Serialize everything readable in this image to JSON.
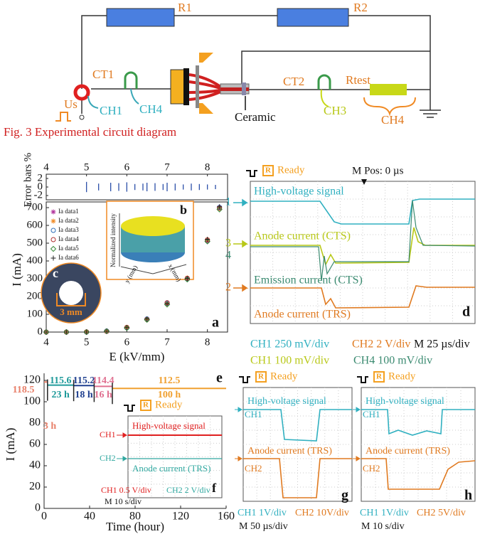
{
  "circuit": {
    "r1": "R1",
    "r2": "R2",
    "ct1": "CT1",
    "ct2": "CT2",
    "us": "Us",
    "ch1": "CH1",
    "ch4_left": "CH4",
    "ceramic": "Ceramic",
    "rtest": "Rtest",
    "ch3": "CH3",
    "ch4_right": "CH4"
  },
  "caption": "Fig. 3 Experimental circuit diagram",
  "chart_data": [
    {
      "type": "scatter",
      "panel_label": "a",
      "xlabel": "E (kV/mm)",
      "ylabel": "I (mA)",
      "xlim": [
        4,
        8.5
      ],
      "ylim": [
        0,
        700
      ],
      "xticks": [
        4,
        5,
        6,
        7,
        8
      ],
      "yticks": [
        0,
        100,
        200,
        300,
        400,
        500,
        600,
        700
      ],
      "x": [
        4,
        4.5,
        5,
        5.5,
        6,
        6.5,
        7,
        7.5,
        8,
        8.3
      ],
      "series": [
        {
          "name": "Ia data1",
          "color": "#b0309a",
          "marker": "star",
          "values": [
            0,
            0,
            0,
            4,
            25,
            72,
            160,
            300,
            515,
            700
          ]
        },
        {
          "name": "Ia data2",
          "color": "#f08a24",
          "marker": "star",
          "values": [
            0,
            0,
            1,
            5,
            27,
            70,
            158,
            305,
            520,
            695
          ]
        },
        {
          "name": "Ia data3",
          "color": "#2f6fb8",
          "marker": "circle",
          "values": [
            0,
            0,
            0,
            6,
            24,
            74,
            162,
            298,
            512,
            702
          ]
        },
        {
          "name": "Ia data4",
          "color": "#b03030",
          "marker": "circle",
          "values": [
            0,
            0,
            1,
            4,
            26,
            71,
            165,
            302,
            518,
            698
          ]
        },
        {
          "name": "Ia data5",
          "color": "#3a8a3a",
          "marker": "diamond",
          "values": [
            0,
            0,
            0,
            5,
            23,
            69,
            155,
            296,
            510,
            690
          ]
        },
        {
          "name": "Ia data6",
          "color": "#222222",
          "marker": "plus",
          "values": [
            0,
            0,
            0,
            5,
            25,
            73,
            161,
            301,
            522,
            705
          ]
        }
      ],
      "error_bars": {
        "ylabel": "Error bars %",
        "ylim": [
          -3,
          3
        ],
        "yticks": [
          2,
          0,
          -2
        ],
        "xticks": [
          4,
          5,
          6,
          7,
          8
        ],
        "color": "#2b4fa8",
        "x": [
          5.0,
          5.3,
          5.6,
          5.8,
          6.0,
          6.2,
          6.4,
          6.5,
          6.7,
          6.9,
          7.0,
          7.2,
          7.4,
          7.6,
          7.8,
          8.0,
          8.2
        ],
        "values": [
          0,
          0,
          0,
          0,
          0,
          0,
          0,
          0,
          0,
          0,
          0,
          0,
          0,
          0,
          0,
          0,
          0
        ],
        "errors": [
          1.2,
          0.8,
          1.0,
          0.9,
          1.1,
          0.7,
          0.8,
          1.0,
          0.9,
          0.7,
          1.0,
          0.8,
          0.6,
          0.8,
          0.7,
          0.6,
          0.5
        ]
      },
      "inset_b": {
        "label": "b",
        "z_label": "Normalized intensity",
        "x_label": "x (mm)",
        "y_label": "y (mm)"
      },
      "inset_c": {
        "label": "c",
        "scale": "3 mm"
      }
    },
    {
      "type": "line",
      "panel_label": "e",
      "xlabel": "Time (hour)",
      "ylabel": "I (mA)",
      "xlim": [
        0,
        160
      ],
      "ylim": [
        0,
        120
      ],
      "xticks": [
        0,
        40,
        80,
        120,
        160
      ],
      "yticks": [
        0,
        20,
        40,
        60,
        80,
        100,
        120
      ],
      "segments": [
        {
          "x": [
            0,
            3
          ],
          "values": [
            118.5,
            118.5
          ],
          "color": "#e8806a",
          "duration": "3 h"
        },
        {
          "x": [
            3,
            26
          ],
          "values": [
            115.6,
            115.6
          ],
          "color": "#1f9a9a",
          "duration": "23 h"
        },
        {
          "x": [
            26,
            44
          ],
          "values": [
            115.2,
            115.2
          ],
          "color": "#1f3f8f",
          "duration": "18 h"
        },
        {
          "x": [
            44,
            60
          ],
          "values": [
            114.4,
            114.4
          ],
          "color": "#e07090",
          "duration": "16 h"
        },
        {
          "x": [
            60,
            160
          ],
          "values": [
            112.5,
            112.5
          ],
          "color": "#f0a030",
          "duration": "100 h"
        }
      ]
    }
  ],
  "panel_d": {
    "label": "d",
    "icon": "R",
    "status": "Ready",
    "position": "M Pos: 0 µs",
    "channels": [
      "1",
      "3",
      "4",
      "2"
    ],
    "traces": [
      "High-voltage signal",
      "Anode current (CTS)",
      "Emission current (CTS)",
      "Anode current (TRS)"
    ],
    "scales": [
      "CH1 250 mV/div",
      "CH2 2 V/div",
      "M 25 µs/div",
      "CH1 100 mV/div",
      "CH4 100 mV/div"
    ]
  },
  "panel_f": {
    "label": "f",
    "icon": "R",
    "status": "Ready",
    "channels": [
      "CH1",
      "CH2"
    ],
    "traces": [
      "High-voltage signal",
      "Anode current (TRS)"
    ],
    "scales": [
      "CH1 0.5 V/div",
      "CH2 2 V/div",
      "M 10 s/div"
    ]
  },
  "panel_g": {
    "label": "g",
    "icon": "R",
    "status": "Ready",
    "channels": [
      "CH1",
      "CH2"
    ],
    "traces": [
      "High-voltage signal",
      "Anode current (TRS)"
    ],
    "scales": [
      "CH1 1V/div",
      "CH2 10V/div",
      "M 50 µs/div"
    ]
  },
  "panel_h": {
    "label": "h",
    "icon": "R",
    "status": "Ready",
    "channels": [
      "CH1",
      "CH2"
    ],
    "traces": [
      "High-voltage signal",
      "Anode current (TRS)"
    ],
    "scales": [
      "CH1 1V/div",
      "CH2 5V/div",
      "M 10 s/div"
    ]
  }
}
